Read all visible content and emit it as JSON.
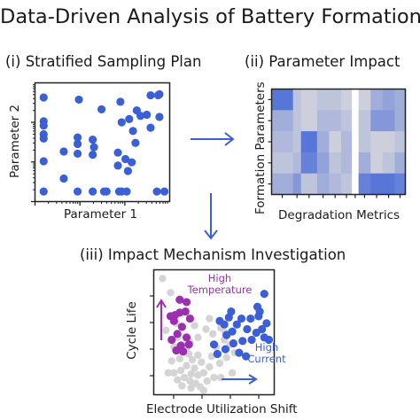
{
  "title": "Data-Driven Analysis of Battery Formation",
  "panels": {
    "sampling": {
      "label": "(i) Stratified Sampling Plan",
      "xlabel": "Parameter 1",
      "ylabel": "Parameter 2"
    },
    "impact": {
      "label": "(ii) Parameter Impact",
      "xlabel": "Degradation Metrics",
      "ylabel": "Formation Parameters"
    },
    "mechanism": {
      "label": "(iii) Impact Mechanism Investigation",
      "xlabel": "Electrode Utilization Shift",
      "ylabel": "Cycle Life",
      "annotations": {
        "high_temperature": [
          "High",
          "Temperature"
        ],
        "high_current": [
          "High",
          "Current"
        ]
      }
    }
  },
  "colors": {
    "blue": "#3a5fd6",
    "purple": "#9b2fb0",
    "gray": "#d4d4d4",
    "heat_gray": "#c8ccd8"
  },
  "chart_data": [
    {
      "type": "scatter",
      "xlabel": "Parameter 1",
      "ylabel": "Parameter 2",
      "xlim": [
        0,
        10
      ],
      "ylim": [
        0,
        10
      ],
      "log_ticks": true,
      "points": [
        [
          0.3,
          9.1
        ],
        [
          0.3,
          6.9
        ],
        [
          0.3,
          6.5
        ],
        [
          0.3,
          5.7
        ],
        [
          0.3,
          5.3
        ],
        [
          0.3,
          3.2
        ],
        [
          0.3,
          0.4
        ],
        [
          1.9,
          4.1
        ],
        [
          1.9,
          1.6
        ],
        [
          3.0,
          5.4
        ],
        [
          3.0,
          4.8
        ],
        [
          3.0,
          3.9
        ],
        [
          3.0,
          0.4
        ],
        [
          3.1,
          8.9
        ],
        [
          4.2,
          5.2
        ],
        [
          4.2,
          3.8
        ],
        [
          4.3,
          4.5
        ],
        [
          4.9,
          8.0
        ],
        [
          4.2,
          0.4
        ],
        [
          5.1,
          0.4
        ],
        [
          5.3,
          0.4
        ],
        [
          6.2,
          4.0
        ],
        [
          6.2,
          2.8
        ],
        [
          6.3,
          0.4
        ],
        [
          6.4,
          8.7
        ],
        [
          6.5,
          6.8
        ],
        [
          6.8,
          3.4
        ],
        [
          6.9,
          0.4
        ],
        [
          7.0,
          2.3
        ],
        [
          7.1,
          7.1
        ],
        [
          7.3,
          3.1
        ],
        [
          7.4,
          6.0
        ],
        [
          7.6,
          4.9
        ],
        [
          8.0,
          7.4
        ],
        [
          8.5,
          7.5
        ],
        [
          8.8,
          9.3
        ],
        [
          8.8,
          6.3
        ],
        [
          9.3,
          0.4
        ],
        [
          9.4,
          9.3
        ],
        [
          9.5,
          9.4
        ],
        [
          9.5,
          7.3
        ],
        [
          9.9,
          0.4
        ],
        [
          6.5,
          0.4
        ],
        [
          7.7,
          7.9
        ]
      ]
    },
    {
      "type": "heatmap",
      "xlabel": "Degradation Metrics",
      "ylabel": "Formation Parameters",
      "columns": 11,
      "rows": 5,
      "values": [
        [
          0.8,
          0.1,
          0.0,
          0.1,
          0.1,
          0.0,
          -1.0,
          -0.2,
          0.3,
          0.4,
          0.3
        ],
        [
          0.3,
          0.1,
          0.0,
          0.2,
          0.2,
          0.1,
          -1.0,
          0.1,
          0.5,
          0.5,
          0.3
        ],
        [
          0.2,
          0.1,
          0.8,
          0.3,
          0.0,
          0.2,
          -1.0,
          0.1,
          0.0,
          0.0,
          0.1
        ],
        [
          0.1,
          0.2,
          0.7,
          0.4,
          0.1,
          0.2,
          -1.0,
          0.3,
          0.0,
          0.1,
          0.3
        ],
        [
          0.3,
          0.5,
          0.1,
          0.3,
          0.2,
          0.1,
          -1.0,
          0.7,
          0.8,
          0.8,
          0.7
        ]
      ]
    },
    {
      "type": "scatter",
      "xlabel": "Electrode Utilization Shift",
      "ylabel": "Cycle Life",
      "xlim": [
        0,
        10
      ],
      "ylim": [
        0,
        10
      ],
      "series": [
        {
          "color": "gray",
          "points": [
            [
              0.5,
              9.6
            ],
            [
              1.2,
              8.4
            ],
            [
              0.8,
              5.2
            ],
            [
              1.8,
              4.6
            ],
            [
              1.5,
              3.8
            ],
            [
              2.2,
              4.0
            ],
            [
              2.8,
              3.2
            ],
            [
              2.0,
              2.8
            ],
            [
              3.1,
              2.7
            ],
            [
              3.6,
              3.1
            ],
            [
              3.9,
              2.5
            ],
            [
              2.6,
              2.2
            ],
            [
              3.3,
              2.0
            ],
            [
              2.1,
              1.8
            ],
            [
              1.5,
              1.6
            ],
            [
              3.0,
              1.5
            ],
            [
              3.6,
              1.4
            ],
            [
              4.1,
              1.6
            ],
            [
              4.6,
              2.1
            ],
            [
              2.4,
              1.2
            ],
            [
              2.9,
              0.9
            ],
            [
              3.4,
              0.7
            ],
            [
              1.8,
              1.0
            ],
            [
              2.2,
              0.5
            ],
            [
              3.8,
              0.4
            ],
            [
              4.4,
              0.9
            ],
            [
              5.0,
              1.2
            ],
            [
              5.5,
              2.4
            ],
            [
              6.1,
              2.9
            ],
            [
              4.8,
              3.0
            ],
            [
              5.2,
              3.8
            ],
            [
              5.9,
              4.4
            ],
            [
              6.4,
              4.0
            ],
            [
              5.6,
              5.4
            ],
            [
              4.3,
              5.3
            ],
            [
              3.6,
              4.6
            ],
            [
              4.9,
              4.9
            ],
            [
              2.6,
              3.5
            ],
            [
              1.0,
              1.6
            ],
            [
              1.3,
              2.6
            ],
            [
              2.9,
              4.2
            ],
            [
              5.6,
              1.2
            ],
            [
              6.6,
              1.6
            ],
            [
              3.0,
              0.3
            ],
            [
              4.1,
              0.1
            ],
            [
              6.0,
              5.0
            ],
            [
              4.6,
              6.2
            ],
            [
              3.3,
              5.6
            ],
            [
              1.7,
              5.8
            ],
            [
              6.8,
              3.3
            ]
          ]
        },
        {
          "color": "purple",
          "points": [
            [
              1.2,
              6.4
            ],
            [
              1.6,
              6.5
            ],
            [
              1.5,
              6.0
            ],
            [
              2.0,
              6.7
            ],
            [
              2.5,
              6.8
            ],
            [
              2.6,
              7.6
            ],
            [
              2.0,
              7.8
            ],
            [
              2.9,
              6.2
            ],
            [
              2.2,
              5.5
            ],
            [
              1.8,
              4.9
            ],
            [
              1.3,
              4.4
            ],
            [
              2.1,
              3.9
            ],
            [
              1.7,
              3.5
            ],
            [
              2.6,
              4.6
            ],
            [
              2.8,
              4.0
            ],
            [
              2.3,
              3.4
            ]
          ]
        },
        {
          "color": "blue",
          "points": [
            [
              5.5,
              6.0
            ],
            [
              5.9,
              5.7
            ],
            [
              6.3,
              6.3
            ],
            [
              6.6,
              5.1
            ],
            [
              6.1,
              4.8
            ],
            [
              7.0,
              5.7
            ],
            [
              7.4,
              6.2
            ],
            [
              7.5,
              4.3
            ],
            [
              7.9,
              5.3
            ],
            [
              8.3,
              4.4
            ],
            [
              8.7,
              5.0
            ],
            [
              9.2,
              5.3
            ],
            [
              8.9,
              6.4
            ],
            [
              9.6,
              5.8
            ],
            [
              9.4,
              4.6
            ],
            [
              8.8,
              7.2
            ],
            [
              9.4,
              8.3
            ],
            [
              9.0,
              6.8
            ],
            [
              9.8,
              4.4
            ],
            [
              6.7,
              4.1
            ],
            [
              7.2,
              3.3
            ],
            [
              6.0,
              3.6
            ],
            [
              5.0,
              4.0
            ],
            [
              5.3,
              3.2
            ],
            [
              6.5,
              6.8
            ],
            [
              7.8,
              3.0
            ],
            [
              8.2,
              6.2
            ]
          ]
        }
      ]
    }
  ]
}
